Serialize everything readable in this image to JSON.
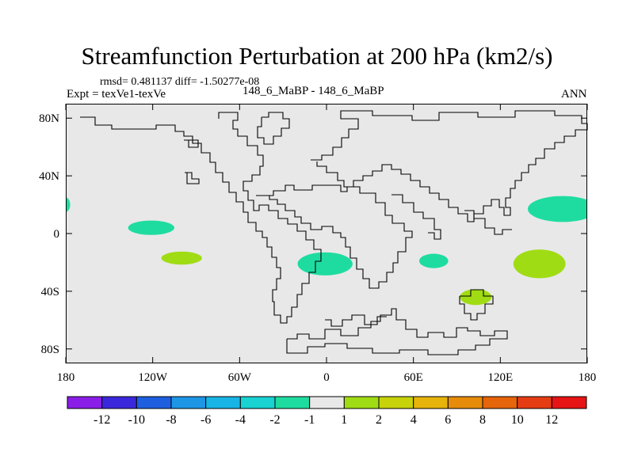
{
  "header": {
    "title": "Streamfunction Perturbation at 200 hPa (km2/s)",
    "stats": "rmsd= 0.481137 diff= -1.50277e-08",
    "experiment": "Expt = texVe1-texVe",
    "cases": "148_6_MaBP - 148_6_MaBP",
    "season": "ANN"
  },
  "chart_data": {
    "type": "heatmap",
    "title": "Streamfunction Perturbation at 200 hPa (km2/s)",
    "xlabel": "",
    "ylabel": "",
    "xlim": [
      -180,
      180
    ],
    "ylim": [
      -90,
      90
    ],
    "x_ticks": [
      {
        "value": -180,
        "label": "180"
      },
      {
        "value": -120,
        "label": "120W"
      },
      {
        "value": -60,
        "label": "60W"
      },
      {
        "value": 0,
        "label": "0"
      },
      {
        "value": 60,
        "label": "60E"
      },
      {
        "value": 120,
        "label": "120E"
      },
      {
        "value": 180,
        "label": "180"
      }
    ],
    "y_ticks": [
      {
        "value": 80,
        "label": "80N"
      },
      {
        "value": 40,
        "label": "40N"
      },
      {
        "value": 0,
        "label": "0"
      },
      {
        "value": -40,
        "label": "40S"
      },
      {
        "value": -80,
        "label": "80S"
      }
    ],
    "background_color": "#e8e8e8",
    "colorbar": {
      "levels": [
        "-12",
        "-10",
        "-8",
        "-6",
        "-4",
        "-2",
        "-1",
        "1",
        "2",
        "4",
        "6",
        "8",
        "10",
        "12"
      ],
      "colors": [
        "#8a1ee8",
        "#3c28dc",
        "#1e5fe0",
        "#1e96e6",
        "#19b4e6",
        "#19d2d2",
        "#1edca0",
        "#e8e8e8",
        "#a0dc14",
        "#c8d20a",
        "#e6b40a",
        "#e68c0a",
        "#e6640a",
        "#e63c14",
        "#e61414"
      ]
    },
    "anomalies": [
      {
        "lon": -180,
        "lat": 20,
        "lon_half_width": 3,
        "lat_half_height": 5,
        "value_range": "-2 to -1",
        "color": "#1edca0"
      },
      {
        "lon": -121,
        "lat": 4,
        "lon_half_width": 16,
        "lat_half_height": 5,
        "value_range": "-2 to -1",
        "color": "#1edca0"
      },
      {
        "lon": -100,
        "lat": -17,
        "lon_half_width": 14,
        "lat_half_height": 4.5,
        "value_range": "1 to 2",
        "color": "#a0dc14"
      },
      {
        "lon": -1,
        "lat": -21,
        "lon_half_width": 19,
        "lat_half_height": 8,
        "value_range": "-2 to -1",
        "color": "#1edca0"
      },
      {
        "lon": 74,
        "lat": -19,
        "lon_half_width": 10,
        "lat_half_height": 5,
        "value_range": "-2 to -1",
        "color": "#1edca0"
      },
      {
        "lon": 103,
        "lat": -44,
        "lon_half_width": 11,
        "lat_half_height": 5.5,
        "value_range": "1 to 2",
        "color": "#a0dc14"
      },
      {
        "lon": 163,
        "lat": 17,
        "lon_half_width": 24,
        "lat_half_height": 9,
        "value_range": "-2 to -1",
        "color": "#1edca0"
      },
      {
        "lon": 147,
        "lat": -21,
        "lon_half_width": 18,
        "lat_half_height": 10,
        "value_range": "1 to 2",
        "color": "#a0dc14"
      }
    ]
  }
}
